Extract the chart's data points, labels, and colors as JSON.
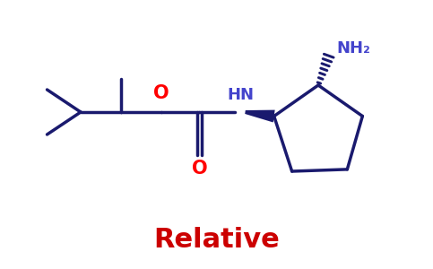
{
  "bg_color": "#ffffff",
  "bond_color": "#1a1a6e",
  "o_color": "#ff0000",
  "n_color": "#4444cc",
  "label_color": "#cc0000",
  "label_text": "Relative",
  "label_fontsize": 22,
  "nh2_text": "NH₂",
  "nh_text": "HN",
  "o_text": "O",
  "linewidth": 2.5,
  "figsize": [
    4.83,
    3.0
  ],
  "dpi": 100
}
